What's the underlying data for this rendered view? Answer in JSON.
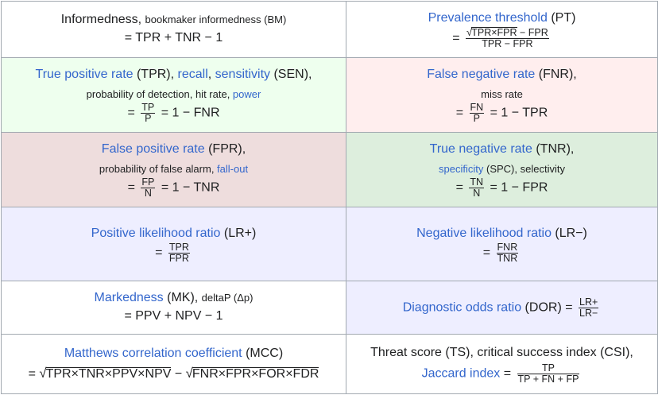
{
  "cells": {
    "bm": {
      "name": "Informedness",
      "sep": ", ",
      "alt": "bookmaker informedness (BM)",
      "formula": "= TPR + TNR − 1"
    },
    "pt": {
      "name": "Prevalence threshold",
      "abbr": " (PT)",
      "eq": "=",
      "num_radicand": "TPR×FPR",
      "num_rest": " − FPR",
      "den": "TPR − FPR"
    },
    "tpr": {
      "name1": "True positive rate",
      "mid1": " (TPR), ",
      "name2": "recall",
      "mid2": ", ",
      "name3": "sensitivity",
      "mid3": " (SEN),",
      "desc": "probability of detection, hit rate, ",
      "desc_link": "power",
      "eq": "=",
      "num": "TP",
      "den": "P",
      "rest": "= 1 − FNR"
    },
    "fnr": {
      "name": "False negative rate",
      "abbr": " (FNR),",
      "desc": "miss rate",
      "eq": "=",
      "num": "FN",
      "den": "P",
      "rest": "= 1 − TPR"
    },
    "fpr": {
      "name": "False positive rate",
      "abbr": " (FPR),",
      "desc": "probability of false alarm, ",
      "desc_link": "fall-out",
      "eq": "=",
      "num": "FP",
      "den": "N",
      "rest": "= 1 − TNR"
    },
    "tnr": {
      "name": "True negative rate",
      "abbr": " (TNR),",
      "desc_link": "specificity",
      "desc": " (SPC), selectivity",
      "eq": "=",
      "num": "TN",
      "den": "N",
      "rest": "= 1 − FPR"
    },
    "lrp": {
      "name": "Positive likelihood ratio",
      "abbr": " (LR+)",
      "eq": "=",
      "num": "TPR",
      "den": "FPR"
    },
    "lrn": {
      "name": "Negative likelihood ratio",
      "abbr": " (LR−)",
      "eq": "=",
      "num": "FNR",
      "den": "TNR"
    },
    "mk": {
      "name": "Markedness",
      "abbr": " (MK), ",
      "alt": "deltaP (Δp)",
      "formula": "= PPV + NPV − 1"
    },
    "dor": {
      "name": "Diagnostic odds ratio",
      "abbr": " (DOR) =",
      "num": "LR+",
      "den": "LR−"
    },
    "mcc": {
      "name": "Matthews correlation coefficient",
      "abbr": " (MCC)",
      "eq": "=",
      "rad1": "TPR×TNR×PPV×NPV",
      "minus": " − ",
      "rad2": "FNR×FPR×FOR×FDR"
    },
    "ts": {
      "line1": "Threat score (TS), critical success index (CSI),",
      "name": "Jaccard index",
      "eq": " =",
      "num": "TP",
      "den": "TP + FN + FP"
    }
  }
}
